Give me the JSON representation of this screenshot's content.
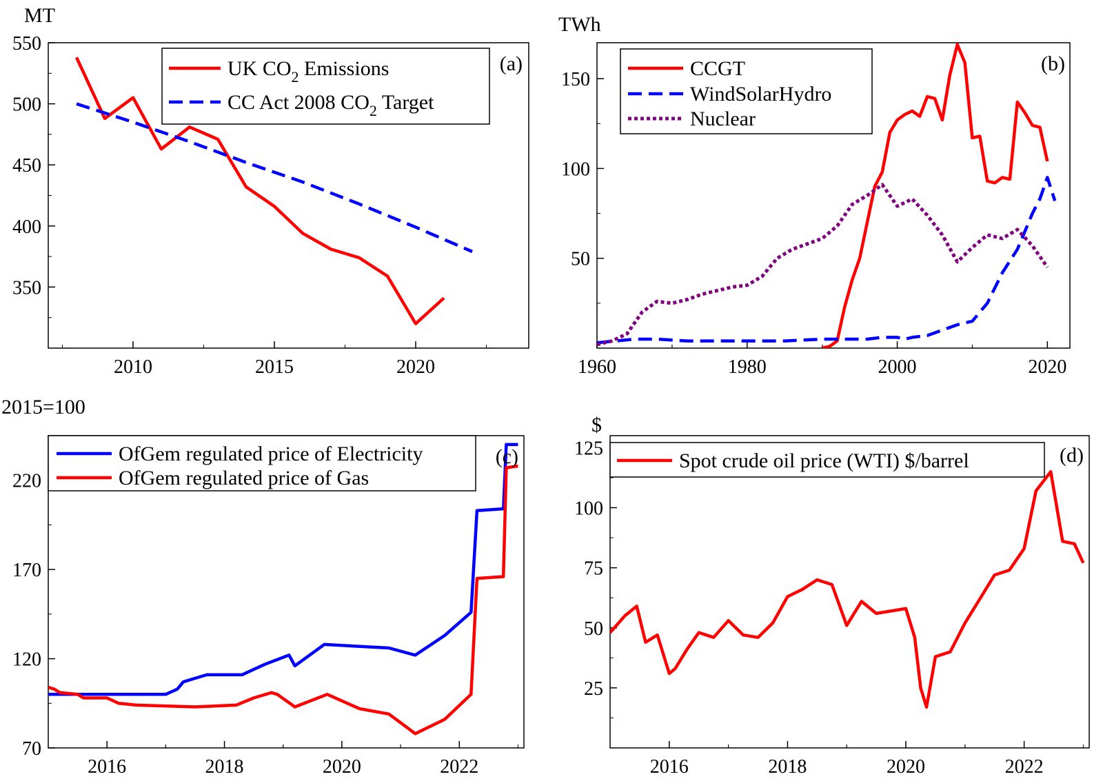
{
  "chart_data": [
    {
      "type": "line",
      "panel_label": "(a)",
      "ylabel": "MT",
      "xlabel": "",
      "xlim": [
        2007,
        2024
      ],
      "ylim": [
        300,
        550
      ],
      "xticks": [
        2010,
        2015,
        2020
      ],
      "yticks": [
        350,
        400,
        450,
        500,
        550
      ],
      "legend_position": "top-right",
      "series": [
        {
          "name": "UK CO2 Emissions",
          "color": "#ff0000",
          "dash": "solid",
          "x": [
            2008,
            2009,
            2010,
            2011,
            2012,
            2013,
            2014,
            2015,
            2016,
            2017,
            2018,
            2019,
            2020,
            2021
          ],
          "y": [
            538,
            488,
            505,
            463,
            481,
            471,
            432,
            416,
            394,
            381,
            374,
            359,
            320,
            341
          ]
        },
        {
          "name": "CC Act 2008 CO2 Target",
          "color": "#0000ff",
          "dash": "dashed",
          "x": [
            2008,
            2010,
            2012,
            2014,
            2016,
            2018,
            2020,
            2022
          ],
          "y": [
            500,
            485,
            469,
            452,
            436,
            418,
            399,
            379
          ]
        }
      ]
    },
    {
      "type": "line",
      "panel_label": "(b)",
      "ylabel": "TWh",
      "xlabel": "",
      "xlim": [
        1960,
        2023
      ],
      "ylim": [
        0,
        170
      ],
      "xticks": [
        1960,
        1980,
        2000,
        2020
      ],
      "yticks": [
        50,
        100,
        150
      ],
      "legend_position": "top-left",
      "series": [
        {
          "name": "CCGT",
          "color": "#ff0000",
          "dash": "solid",
          "x": [
            1990,
            1991,
            1992,
            1993,
            1994,
            1995,
            1996,
            1997,
            1998,
            1999,
            2000,
            2001,
            2002,
            2003,
            2004,
            2005,
            2006,
            2007,
            2008,
            2009,
            2010,
            2011,
            2012,
            2013,
            2014,
            2015,
            2016,
            2017,
            2018,
            2019,
            2020
          ],
          "y": [
            0,
            1,
            4,
            23,
            38,
            50,
            70,
            90,
            98,
            120,
            127,
            130,
            132,
            129,
            140,
            139,
            127,
            152,
            169,
            159,
            117,
            118,
            93,
            92,
            95,
            94,
            137,
            131,
            124,
            123,
            104
          ]
        },
        {
          "name": "WindSolarHydro",
          "color": "#0000ff",
          "dash": "dashed",
          "x": [
            1960,
            1965,
            1968,
            1972,
            1980,
            1985,
            1990,
            1994,
            1996,
            1998,
            2000,
            2001,
            2002,
            2004,
            2006,
            2008,
            2010,
            2012,
            2014,
            2016,
            2018,
            2019,
            2020,
            2021
          ],
          "y": [
            3,
            5,
            5,
            4,
            4,
            4,
            5,
            5,
            5,
            6,
            6,
            5,
            6,
            7,
            10,
            13,
            15,
            25,
            42,
            55,
            75,
            83,
            95,
            82
          ]
        },
        {
          "name": "Nuclear",
          "color": "#800080",
          "dash": "dotted",
          "x": [
            1960,
            1962,
            1964,
            1966,
            1968,
            1970,
            1972,
            1974,
            1976,
            1978,
            1980,
            1982,
            1984,
            1986,
            1988,
            1990,
            1992,
            1994,
            1996,
            1998,
            2000,
            2002,
            2004,
            2006,
            2008,
            2010,
            2012,
            2014,
            2016,
            2018,
            2020
          ],
          "y": [
            2,
            4,
            8,
            20,
            26,
            25,
            27,
            30,
            32,
            34,
            35,
            40,
            50,
            55,
            58,
            61,
            68,
            80,
            85,
            91,
            79,
            83,
            74,
            63,
            48,
            56,
            63,
            61,
            66,
            57,
            45
          ]
        }
      ]
    },
    {
      "type": "line",
      "panel_label": "(c)",
      "ylabel": "2015=100",
      "xlabel": "",
      "xlim": [
        2015,
        2023.1
      ],
      "ylim": [
        70,
        245
      ],
      "xticks": [
        2016,
        2018,
        2020,
        2022
      ],
      "yticks": [
        70,
        120,
        170,
        220
      ],
      "legend_position": "top-left",
      "series": [
        {
          "name": "OfGem regulated price of Electricity",
          "color": "#0000ff",
          "dash": "solid",
          "x": [
            2015,
            2016,
            2017,
            2017.2,
            2017.3,
            2017.5,
            2017.7,
            2018.3,
            2018.5,
            2018.7,
            2019.1,
            2019.2,
            2019.7,
            2020.8,
            2021.25,
            2021.75,
            2022.2,
            2022.3,
            2022.75,
            2022.8,
            2023
          ],
          "y": [
            100,
            100,
            100,
            103,
            107,
            109,
            111,
            111,
            114,
            117,
            122,
            116,
            128,
            126,
            122,
            133,
            146,
            203,
            204,
            240,
            240
          ]
        },
        {
          "name": "OfGem regulated price of Gas",
          "color": "#ff0000",
          "dash": "solid",
          "x": [
            2015,
            2015.1,
            2015.2,
            2015.5,
            2015.6,
            2016.0,
            2016.2,
            2016.5,
            2017.5,
            2018.2,
            2018.5,
            2018.8,
            2018.9,
            2019.2,
            2019.75,
            2020.3,
            2020.8,
            2021.25,
            2021.75,
            2022.2,
            2022.3,
            2022.75,
            2022.8,
            2023
          ],
          "y": [
            104,
            103,
            101,
            100,
            98,
            98,
            95,
            94,
            93,
            94,
            98,
            101,
            100,
            93,
            100,
            92,
            89,
            78,
            86,
            100,
            165,
            166,
            227,
            228
          ]
        }
      ]
    },
    {
      "type": "line",
      "panel_label": "(d)",
      "ylabel": "$",
      "xlabel": "",
      "xlim": [
        2015,
        2023.1
      ],
      "ylim": [
        0,
        130
      ],
      "xticks": [
        2016,
        2018,
        2020,
        2022
      ],
      "yticks": [
        25,
        50,
        75,
        100,
        125
      ],
      "legend_position": "top",
      "series": [
        {
          "name": "Spot crude oil price (WTI) $/barrel",
          "color": "#ff0000",
          "dash": "solid",
          "x": [
            2015.0,
            2015.25,
            2015.45,
            2015.6,
            2015.8,
            2016.0,
            2016.1,
            2016.3,
            2016.5,
            2016.75,
            2017.0,
            2017.25,
            2017.5,
            2017.75,
            2018.0,
            2018.25,
            2018.5,
            2018.75,
            2019.0,
            2019.25,
            2019.5,
            2019.75,
            2020.0,
            2020.15,
            2020.25,
            2020.35,
            2020.5,
            2020.75,
            2021.0,
            2021.25,
            2021.5,
            2021.75,
            2022.0,
            2022.2,
            2022.45,
            2022.65,
            2022.85,
            2023.0
          ],
          "y": [
            48,
            55,
            59,
            44,
            47,
            31,
            33,
            41,
            48,
            46,
            53,
            47,
            46,
            52,
            63,
            66,
            70,
            68,
            51,
            61,
            56,
            57,
            58,
            46,
            25,
            17,
            38,
            40,
            52,
            62,
            72,
            74,
            83,
            107,
            115,
            86,
            85,
            77
          ]
        }
      ]
    }
  ]
}
